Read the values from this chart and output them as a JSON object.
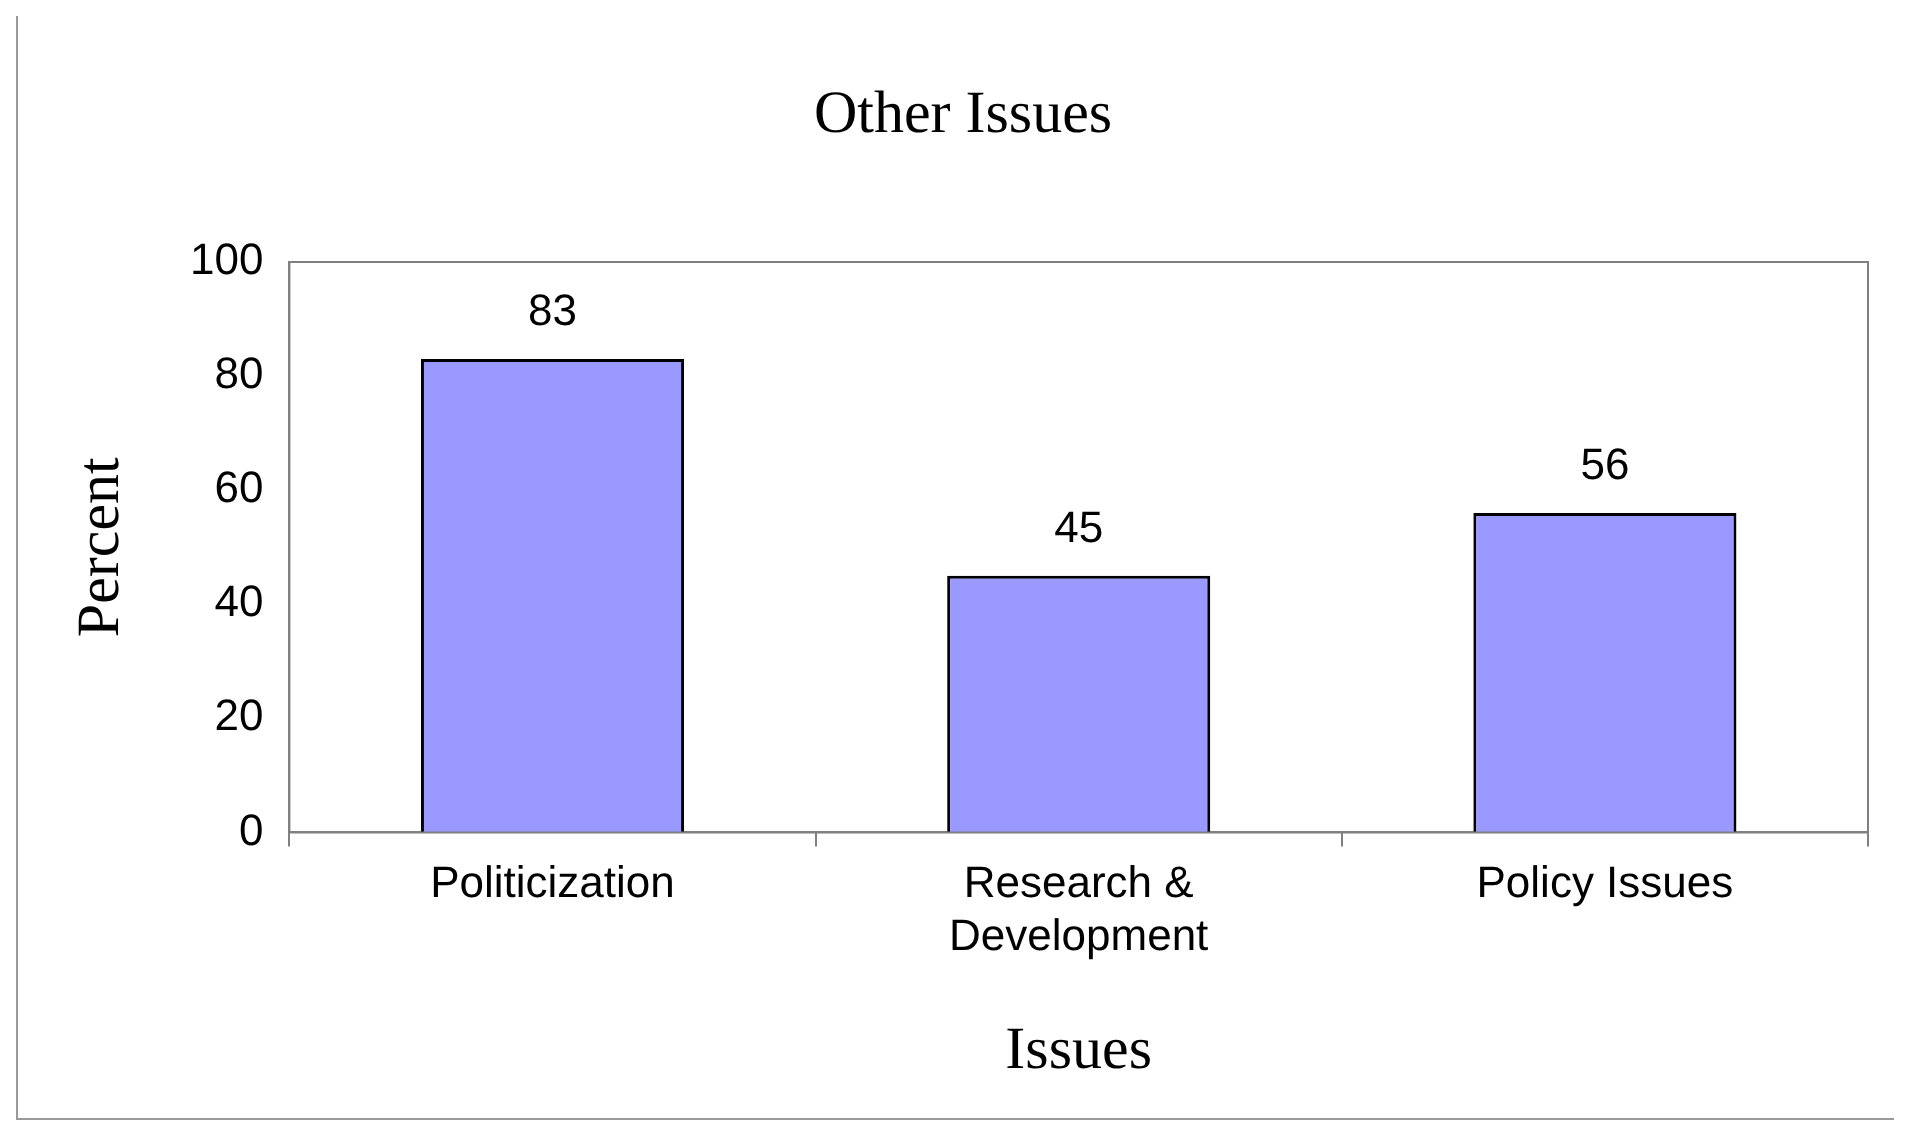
{
  "chart_data": {
    "type": "bar",
    "title": "Other Issues",
    "xlabel": "Issues",
    "ylabel": "Percent",
    "categories": [
      "Politicization",
      "Research & Development",
      "Policy Issues"
    ],
    "values": [
      83,
      45,
      56
    ],
    "color": "#9999ff",
    "ylim": [
      0,
      100
    ],
    "yticks": [
      0,
      20,
      40,
      60,
      80,
      100
    ],
    "data_labels": true,
    "legend": false
  }
}
